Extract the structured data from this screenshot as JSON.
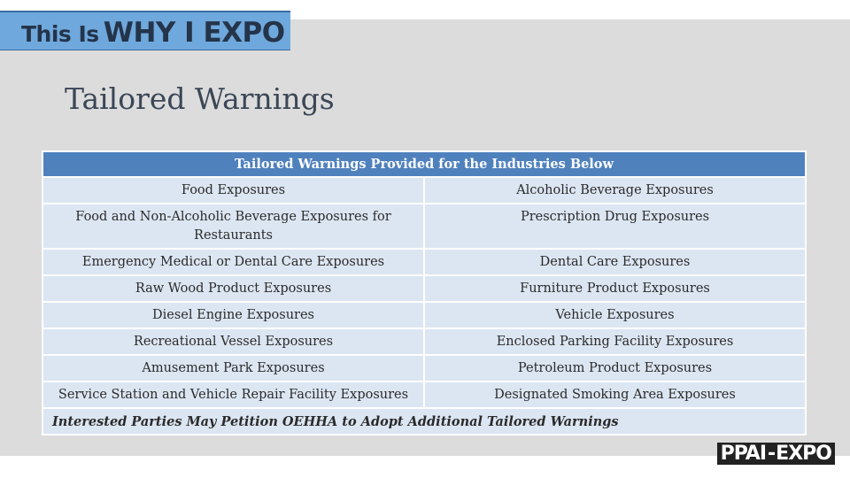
{
  "banner": {
    "part1": "This Is",
    "part2": "WHY I EXPO"
  },
  "title": "Tailored Warnings",
  "table": {
    "header": "Tailored Warnings Provided for the Industries Below",
    "rows": [
      [
        "Food Exposures",
        "Alcoholic Beverage Exposures"
      ],
      [
        "Food and Non-Alcoholic Beverage Exposures for Restaurants",
        "Prescription Drug Exposures"
      ],
      [
        "Emergency Medical or Dental Care Exposures",
        "Dental Care Exposures"
      ],
      [
        "Raw Wood Product Exposures",
        "Furniture Product Exposures"
      ],
      [
        "Diesel Engine Exposures",
        "Vehicle Exposures"
      ],
      [
        "Recreational Vessel Exposures",
        "Enclosed Parking Facility Exposures"
      ],
      [
        "Amusement Park Exposures",
        "Petroleum Product Exposures"
      ],
      [
        "Service Station and Vehicle Repair Facility Exposures",
        "Designated Smoking Area Exposures"
      ]
    ],
    "footer": "Interested Parties May Petition OEHHA to Adopt Additional Tailored Warnings"
  },
  "logo": {
    "left": "PPAI",
    "right": "EXPO"
  },
  "colors": {
    "header": "#4f81bd",
    "cell": "#dce6f2",
    "banner": "#6fa8dc"
  }
}
